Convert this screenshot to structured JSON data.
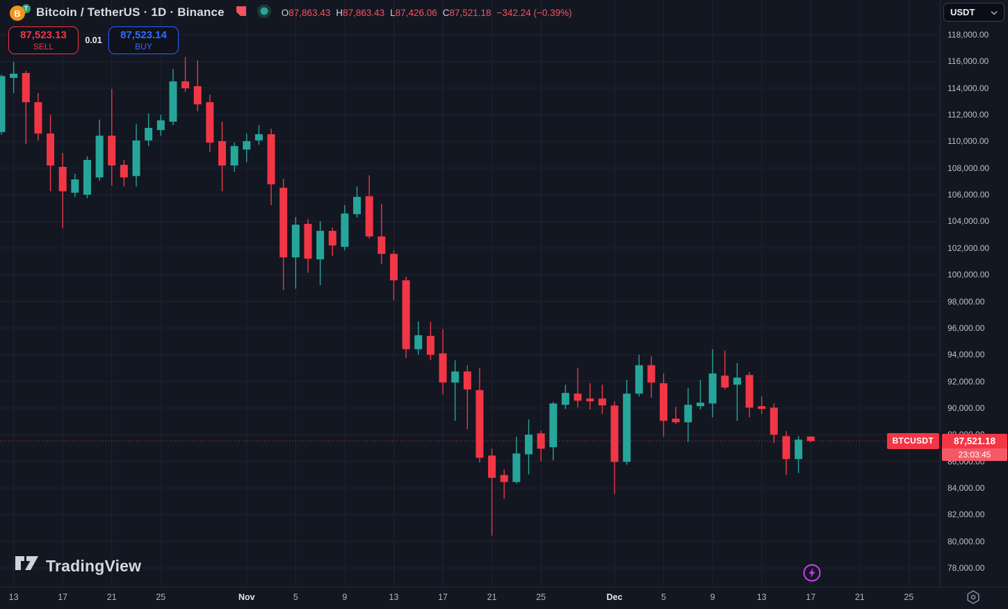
{
  "header": {
    "symbol_title": "Bitcoin / TetherUS · 1D · Binance",
    "ohlc": {
      "open_label": "O",
      "open": "87,863.43",
      "high_label": "H",
      "high": "87,863.43",
      "low_label": "L",
      "low": "87,426.06",
      "close_label": "C",
      "close": "87,521.18",
      "change": "−342.24 (−0.39%)"
    },
    "sell_button": {
      "price": "87,523.13",
      "label": "SELL"
    },
    "spread": "0.01",
    "buy_button": {
      "price": "87,523.14",
      "label": "BUY"
    }
  },
  "price_axis": {
    "currency_button_label": "USDT",
    "current_price": "87,521.18",
    "countdown": "23:03:45"
  },
  "chart": {
    "symbol_tag": "BTCUSDT"
  },
  "footer": {
    "logo_text": "TradingView"
  },
  "colors": {
    "background": "#131722",
    "grid": "#1e2433",
    "up": "#26a69a",
    "down": "#f23645",
    "ohlc_value": "#f7525f",
    "buy_blue": "#2962ff",
    "axis_text": "#bcc1cc",
    "purple": "#c13be0"
  },
  "chart_data": {
    "type": "candlestick",
    "title": "Bitcoin / TetherUS · 1D · Binance",
    "symbol": "BTCUSDT",
    "exchange": "Binance",
    "timeframe": "1D",
    "legend_position": "none",
    "grid": "on",
    "y_axis": {
      "min": 78000,
      "max": 118000,
      "tick_step": 2000,
      "unit": "USDT"
    },
    "last_price": 87521.18,
    "last_price_line_style": "dotted",
    "x_ticks": [
      {
        "label": "13",
        "index": 1,
        "bold": false
      },
      {
        "label": "17",
        "index": 5,
        "bold": false
      },
      {
        "label": "21",
        "index": 9,
        "bold": false
      },
      {
        "label": "25",
        "index": 13,
        "bold": false
      },
      {
        "label": "Nov",
        "index": 20,
        "bold": true
      },
      {
        "label": "5",
        "index": 24,
        "bold": false
      },
      {
        "label": "9",
        "index": 28,
        "bold": false
      },
      {
        "label": "13",
        "index": 32,
        "bold": false
      },
      {
        "label": "17",
        "index": 36,
        "bold": false
      },
      {
        "label": "21",
        "index": 40,
        "bold": false
      },
      {
        "label": "25",
        "index": 44,
        "bold": false
      },
      {
        "label": "Dec",
        "index": 50,
        "bold": true
      },
      {
        "label": "5",
        "index": 54,
        "bold": false
      },
      {
        "label": "9",
        "index": 58,
        "bold": false
      },
      {
        "label": "13",
        "index": 62,
        "bold": false
      },
      {
        "label": "17",
        "index": 66,
        "bold": false
      },
      {
        "label": "21",
        "index": 70,
        "bold": false
      },
      {
        "label": "25",
        "index": 74,
        "bold": false
      }
    ],
    "columns": [
      "date",
      "open",
      "high",
      "low",
      "close"
    ],
    "candles": [
      [
        "Oct 12",
        110700,
        115000,
        110500,
        114900
      ],
      [
        "Oct 13",
        114760,
        115960,
        113620,
        115080
      ],
      [
        "Oct 14",
        115130,
        115300,
        109810,
        112940
      ],
      [
        "Oct 15",
        112940,
        113620,
        110070,
        110590
      ],
      [
        "Oct 16",
        110590,
        112000,
        106260,
        108190
      ],
      [
        "Oct 17",
        108090,
        109130,
        103490,
        106260
      ],
      [
        "Oct 18",
        106150,
        107560,
        105840,
        107150
      ],
      [
        "Oct 19",
        106000,
        108870,
        105740,
        108610
      ],
      [
        "Oct 20",
        107300,
        111630,
        107040,
        110430
      ],
      [
        "Oct 21",
        110430,
        113930,
        106680,
        108190
      ],
      [
        "Oct 22",
        108240,
        108610,
        106620,
        107300
      ],
      [
        "Oct 23",
        107400,
        111320,
        106620,
        110070
      ],
      [
        "Oct 24",
        110070,
        112100,
        109650,
        111010
      ],
      [
        "Oct 25",
        110850,
        112000,
        110430,
        111580
      ],
      [
        "Oct 26",
        111480,
        115440,
        111220,
        114500
      ],
      [
        "Oct 27",
        114500,
        116330,
        113720,
        113980
      ],
      [
        "Oct 28",
        114140,
        116070,
        112260,
        112780
      ],
      [
        "Oct 29",
        112940,
        113510,
        109230,
        109910
      ],
      [
        "Oct 30",
        110020,
        111480,
        106260,
        108190
      ],
      [
        "Oct 31",
        108190,
        109910,
        107720,
        109650
      ],
      [
        "Nov 1",
        109390,
        110590,
        108450,
        110020
      ],
      [
        "Nov 2",
        110070,
        111220,
        109760,
        110540
      ],
      [
        "Nov 3",
        110540,
        110960,
        105220,
        106780
      ],
      [
        "Nov 4",
        106520,
        107200,
        98850,
        101300
      ],
      [
        "Nov 5",
        101300,
        104330,
        98950,
        103750
      ],
      [
        "Nov 6",
        103810,
        104170,
        100150,
        101200
      ],
      [
        "Nov 7",
        101150,
        104020,
        99220,
        103290
      ],
      [
        "Nov 8",
        103290,
        103550,
        101410,
        102190
      ],
      [
        "Nov 9",
        102090,
        105220,
        101820,
        104590
      ],
      [
        "Nov 10",
        104540,
        106630,
        104280,
        105840
      ],
      [
        "Nov 11",
        105890,
        107460,
        102710,
        102870
      ],
      [
        "Nov 12",
        102870,
        105320,
        100780,
        101560
      ],
      [
        "Nov 13",
        101560,
        101820,
        98070,
        99580
      ],
      [
        "Nov 14",
        99580,
        99840,
        93740,
        94410
      ],
      [
        "Nov 15",
        94410,
        96500,
        94000,
        95460
      ],
      [
        "Nov 16",
        95410,
        96450,
        93580,
        93990
      ],
      [
        "Nov 17",
        94100,
        95930,
        91020,
        91910
      ],
      [
        "Nov 18",
        91910,
        93580,
        89040,
        92740
      ],
      [
        "Nov 19",
        92740,
        93210,
        88410,
        91390
      ],
      [
        "Nov 20",
        91340,
        93010,
        85910,
        86270
      ],
      [
        "Nov 21",
        86430,
        86950,
        80430,
        84760
      ],
      [
        "Nov 22",
        84970,
        85390,
        83200,
        84450
      ],
      [
        "Nov 23",
        84450,
        87840,
        84340,
        86590
      ],
      [
        "Nov 24",
        86530,
        89140,
        85020,
        88000
      ],
      [
        "Nov 25",
        88100,
        88300,
        86010,
        86950
      ],
      [
        "Nov 26",
        87060,
        90450,
        86070,
        90340
      ],
      [
        "Nov 27",
        90240,
        91750,
        89930,
        91130
      ],
      [
        "Nov 28",
        91080,
        93010,
        90030,
        90550
      ],
      [
        "Nov 29",
        90710,
        91860,
        89870,
        90500
      ],
      [
        "Nov 30",
        90710,
        91750,
        89560,
        90190
      ],
      [
        "Dec 1",
        90190,
        90500,
        83560,
        85960
      ],
      [
        "Dec 2",
        85960,
        92120,
        85750,
        91080
      ],
      [
        "Dec 3",
        91080,
        94000,
        90870,
        93210
      ],
      [
        "Dec 4",
        93210,
        93890,
        90760,
        91910
      ],
      [
        "Dec 5",
        91860,
        92590,
        87840,
        89040
      ],
      [
        "Dec 6",
        89200,
        90080,
        88780,
        88930
      ],
      [
        "Dec 7",
        88930,
        91490,
        87470,
        90240
      ],
      [
        "Dec 8",
        90140,
        92120,
        89870,
        90400
      ],
      [
        "Dec 9",
        90340,
        94410,
        89300,
        92590
      ],
      [
        "Dec 10",
        92430,
        94310,
        91390,
        91540
      ],
      [
        "Dec 11",
        91750,
        93370,
        89040,
        92280
      ],
      [
        "Dec 12",
        92480,
        92700,
        89300,
        90030
      ],
      [
        "Dec 13",
        90140,
        90870,
        89560,
        89930
      ],
      [
        "Dec 14",
        90030,
        90340,
        87370,
        88000
      ],
      [
        "Dec 15",
        87890,
        88260,
        84970,
        86170
      ],
      [
        "Dec 16",
        86170,
        87890,
        85130,
        87630
      ],
      [
        "Dec 17",
        87863.43,
        87863.43,
        87426.06,
        87521.18
      ]
    ]
  }
}
